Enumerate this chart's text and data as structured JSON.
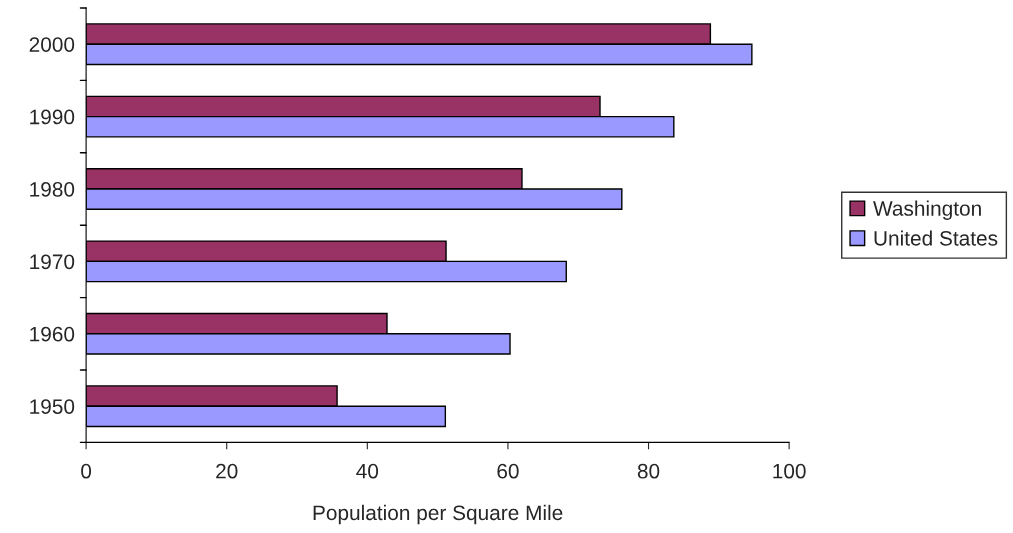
{
  "chart_data": {
    "type": "bar",
    "orientation": "horizontal",
    "xlabel": "Population per Square Mile",
    "categories": [
      "2000",
      "1990",
      "1980",
      "1970",
      "1960",
      "1950"
    ],
    "series": [
      {
        "name": "Washington",
        "color": "#993366",
        "values": [
          88.8,
          73.1,
          62.0,
          51.2,
          42.8,
          35.7
        ]
      },
      {
        "name": "United States",
        "color": "#9999ff",
        "values": [
          94.7,
          83.6,
          76.2,
          68.3,
          60.3,
          51.1
        ]
      }
    ],
    "xlim": [
      0,
      100
    ],
    "xticks": [
      0,
      20,
      40,
      60,
      80,
      100
    ],
    "grid": false,
    "legend": "right"
  }
}
